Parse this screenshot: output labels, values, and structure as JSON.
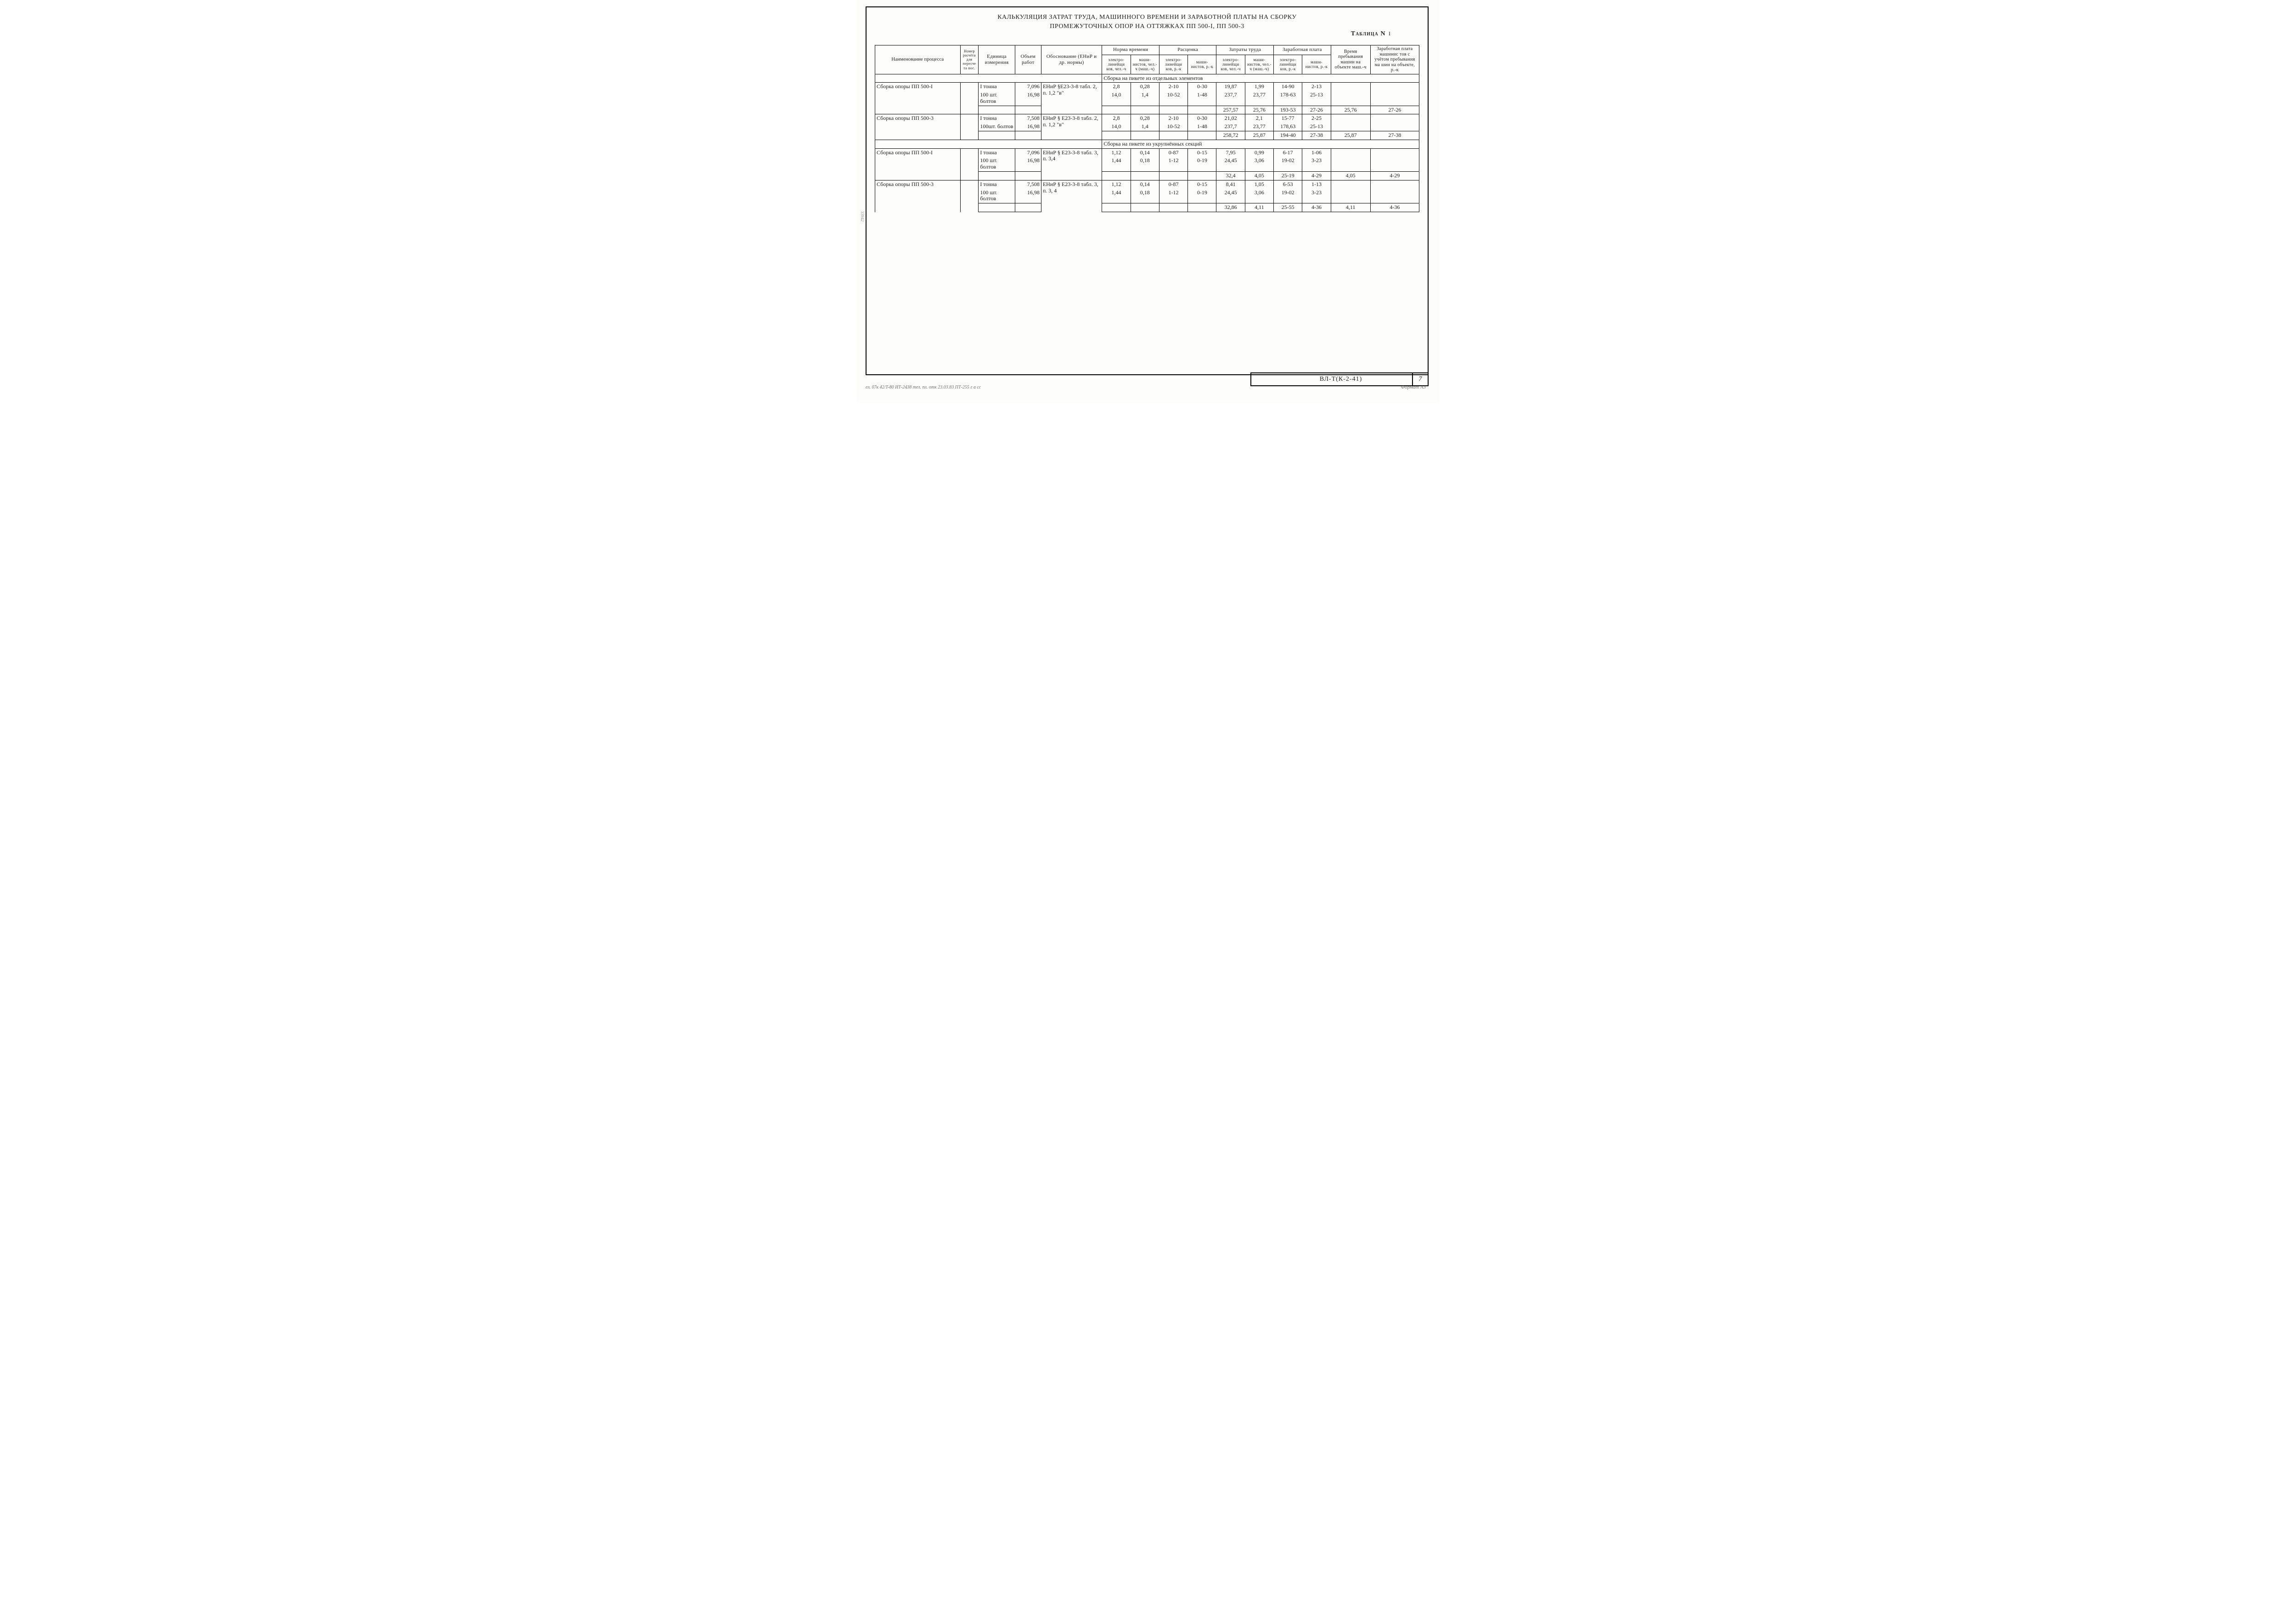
{
  "title1": "КАЛЬКУЛЯЦИЯ ЗАТРАТ ТРУДА, МАШИННОГО ВРЕМЕНИ И ЗАРАБОТНОЙ ПЛАТЫ НА СБОРКУ",
  "title2": "ПРОМЕЖУТОЧНЫХ ОПОР НА ОТТЯЖКАХ ПП 500-I, ПП 500-3",
  "table_label": "Таблица N",
  "table_no": "I",
  "head": {
    "name": "Наименование процесса",
    "rasc": "Номер расчёта для пересче та пос.",
    "unit": "Единица измерения",
    "vol": "Объем работ",
    "basis": "Обоснование (ЕНиР и др. нормы)",
    "grp_norm": "Норма времени",
    "grp_rate": "Расценка",
    "grp_cost": "Затраты труда",
    "grp_pay": "Заработная плата",
    "time_mach": "Время пребывания машин на объекте маш.-ч",
    "pay_mach": "Заработная плата машинис тов с учётом пребывания ма шин на объекте, р.-к",
    "sub_el": "электро- линейщи ков, чел.-ч",
    "sub_mash_h": "маши- нистов, чел.-ч (маш.-ч)",
    "sub_el_rk": "электро- линейщи ков, р.-к",
    "sub_mash_rk": "маши- нистов, р.-к",
    "sub_el_cost": "электро- линейщи ков, чел.-ч",
    "sub_mash_cost": "маши- нистов, чел.-ч (маш.-ч)",
    "sub_el_pay": "электро- линейщи ков, р.-к",
    "sub_mash_pay": "маши- нистов, р.-к"
  },
  "section1": "Сборка на пикете из отдельных элементов",
  "section2": "Сборка на пикете из укрупнённых секций",
  "groups": [
    {
      "name": "Сборка опоры ПП 500-I",
      "basis": "ЕНиР §Е23-3-8 табл. 2, п. 1,2 \"в\"",
      "rows": [
        {
          "unit": "I тонна",
          "vol": "7,096",
          "n_el": "2,8",
          "n_m": "0,28",
          "r_el": "2-10",
          "r_m": "0-30",
          "c_el": "19,87",
          "c_m": "1,99",
          "p_el": "14-90",
          "p_m": "2-13"
        },
        {
          "unit": "100 шт. болтов",
          "vol": "16,98",
          "n_el": "14,0",
          "n_m": "1,4",
          "r_el": "10-52",
          "r_m": "1-48",
          "c_el": "237,7",
          "c_m": "23,77",
          "p_el": "178-63",
          "p_m": "25-13"
        }
      ],
      "subtotal": {
        "c_el": "257,57",
        "c_m": "25,76",
        "p_el": "193-53",
        "p_m": "27-26",
        "t_m": "25,76",
        "pay_m": "27-26"
      }
    },
    {
      "name": "Сборка опоры ПП 500-3",
      "basis": "ЕНиР § Е23-3-8 табл. 2, п. 1,2 \"в\"",
      "rows": [
        {
          "unit": "I тонна",
          "vol": "7,508",
          "n_el": "2,8",
          "n_m": "0,28",
          "r_el": "2-10",
          "r_m": "0-30",
          "c_el": "21,02",
          "c_m": "2,1",
          "p_el": "15-77",
          "p_m": "2-25"
        },
        {
          "unit": "100шт. болтов",
          "vol": "16,98",
          "n_el": "14,0",
          "n_m": "1,4",
          "r_el": "10-52",
          "r_m": "1-48",
          "c_el": "237,7",
          "c_m": "23,77",
          "p_el": "178,63",
          "p_m": "25-13"
        }
      ],
      "subtotal": {
        "c_el": "258,72",
        "c_m": "25,87",
        "p_el": "194-40",
        "p_m": "27-38",
        "t_m": "25,87",
        "pay_m": "27-38"
      }
    },
    {
      "name": "Сборка опоры ПП 500-I",
      "basis": "ЕНиР § Е23-3-8 табл. 3, п. 3,4",
      "rows": [
        {
          "unit": "I тонна",
          "vol": "7,096",
          "n_el": "1,12",
          "n_m": "0,14",
          "r_el": "0-87",
          "r_m": "0-15",
          "c_el": "7,95",
          "c_m": "0,99",
          "p_el": "6-17",
          "p_m": "1-06"
        },
        {
          "unit": "100 шт. болтов",
          "vol": "16,98",
          "n_el": "1,44",
          "n_m": "0,18",
          "r_el": "1-12",
          "r_m": "0-19",
          "c_el": "24,45",
          "c_m": "3,06",
          "p_el": "19-02",
          "p_m": "3-23"
        }
      ],
      "subtotal": {
        "c_el": "32,4",
        "c_m": "4,05",
        "p_el": "25-19",
        "p_m": "4-29",
        "t_m": "4,05",
        "pay_m": "4-29"
      }
    },
    {
      "name": "Сборка опоры ПП 500-3",
      "basis": "ЕНиР § Е23-3-8 табл. 3, п. 3, 4",
      "rows": [
        {
          "unit": "I тонна",
          "vol": "7,508",
          "n_el": "1,12",
          "n_m": "0,14",
          "r_el": "0-87",
          "r_m": "0-15",
          "c_el": "8,41",
          "c_m": "1,05",
          "p_el": "6-53",
          "p_m": "1-13"
        },
        {
          "unit": "100 шт. болтов",
          "vol": "16,98",
          "n_el": "1,44",
          "n_m": "0,18",
          "r_el": "1-12",
          "r_m": "0-19",
          "c_el": "24,45",
          "c_m": "3,06",
          "p_el": "19-02",
          "p_m": "3-23"
        }
      ],
      "subtotal": {
        "c_el": "32,86",
        "c_m": "4,11",
        "p_el": "25-55",
        "p_m": "4-36",
        "t_m": "4,11",
        "pay_m": "4-36"
      }
    }
  ],
  "footer_code": "ВЛ-Т(К-2-41)",
  "footer_page": "7",
  "scribble_left": "33942",
  "scribble_bottom": "ел. 07к 42/T-80 ИТ-2438 тел. пл. отк 23.03.83 ПТ-255 г а сс",
  "scribble_bottom_right": "Формат АЗ"
}
